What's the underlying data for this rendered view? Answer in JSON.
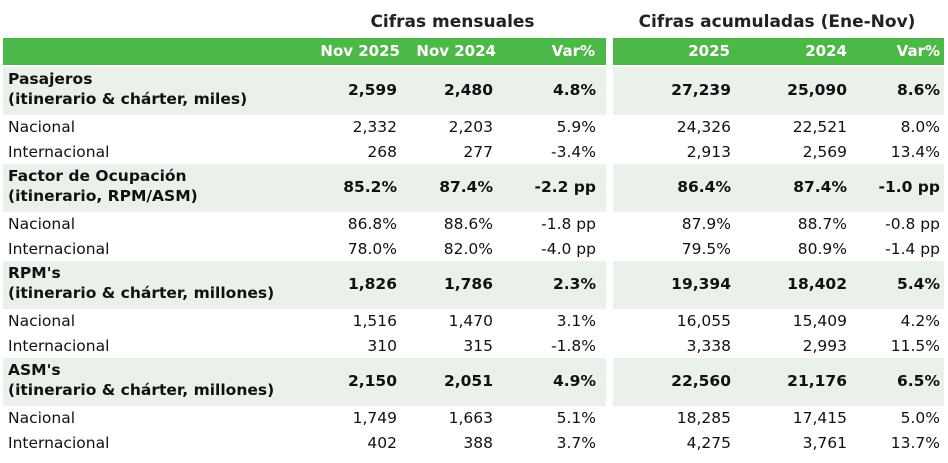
{
  "titles": {
    "monthly": "Cifras mensuales",
    "cumulative": "Cifras acumuladas (Ene-Nov)"
  },
  "headers": {
    "monthly": [
      "Nov 2025",
      "Nov 2024",
      "Var%"
    ],
    "cumulative": [
      "2025",
      "2024",
      "Var%"
    ]
  },
  "sections": [
    {
      "title_line1": "Pasajeros",
      "title_line2": "(itinerario & chárter, miles)",
      "totals": [
        "2,599",
        "2,480",
        "4.8%",
        "27,239",
        "25,090",
        "8.6%"
      ],
      "rows": [
        {
          "label": "Nacional",
          "values": [
            "2,332",
            "2,203",
            "5.9%",
            "24,326",
            "22,521",
            "8.0%"
          ]
        },
        {
          "label": "Internacional",
          "values": [
            "268",
            "277",
            "-3.4%",
            "2,913",
            "2,569",
            "13.4%"
          ]
        }
      ]
    },
    {
      "title_line1": "Factor de Ocupación",
      "title_line2": "(itinerario, RPM/ASM)",
      "totals": [
        "85.2%",
        "87.4%",
        "-2.2 pp",
        "86.4%",
        "87.4%",
        "-1.0 pp"
      ],
      "rows": [
        {
          "label": "Nacional",
          "values": [
            "86.8%",
            "88.6%",
            "-1.8 pp",
            "87.9%",
            "88.7%",
            "-0.8 pp"
          ]
        },
        {
          "label": "Internacional",
          "values": [
            "78.0%",
            "82.0%",
            "-4.0 pp",
            "79.5%",
            "80.9%",
            "-1.4 pp"
          ]
        }
      ]
    },
    {
      "title_line1": "RPM's",
      "title_line2": "(itinerario & chárter, millones)",
      "totals": [
        "1,826",
        "1,786",
        "2.3%",
        "19,394",
        "18,402",
        "5.4%"
      ],
      "rows": [
        {
          "label": "Nacional",
          "values": [
            "1,516",
            "1,470",
            "3.1%",
            "16,055",
            "15,409",
            "4.2%"
          ]
        },
        {
          "label": "Internacional",
          "values": [
            "310",
            "315",
            "-1.8%",
            "3,338",
            "2,993",
            "11.5%"
          ]
        }
      ]
    },
    {
      "title_line1": "ASM's",
      "title_line2": "(itinerario & chárter, millones)",
      "totals": [
        "2,150",
        "2,051",
        "4.9%",
        "22,560",
        "21,176",
        "6.5%"
      ],
      "rows": [
        {
          "label": "Nacional",
          "values": [
            "1,749",
            "1,663",
            "5.1%",
            "18,285",
            "17,415",
            "5.0%"
          ]
        },
        {
          "label": "Internacional",
          "values": [
            "402",
            "388",
            "3.7%",
            "4,275",
            "3,761",
            "13.7%"
          ]
        }
      ]
    }
  ]
}
